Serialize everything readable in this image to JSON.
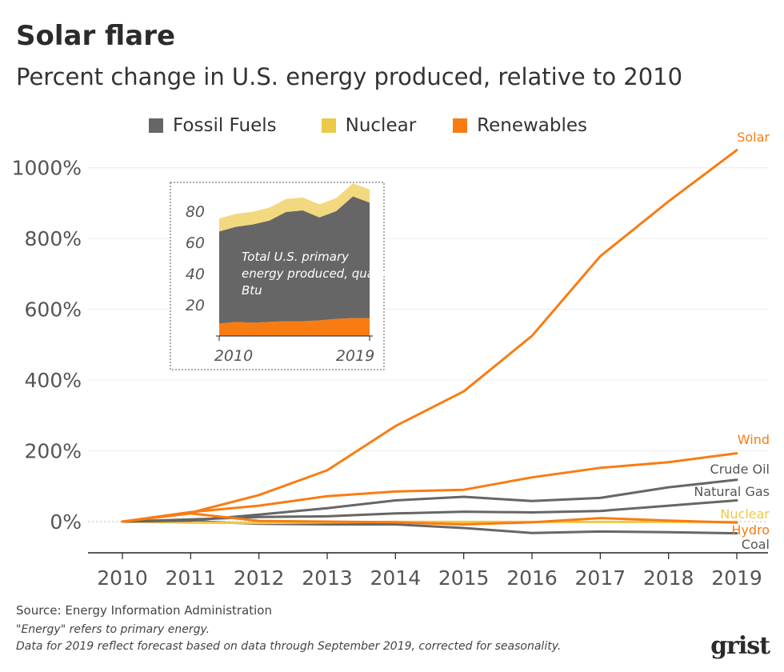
{
  "header": {
    "title": "Solar flare",
    "subtitle": "Percent change in U.S. energy produced, relative to 2010"
  },
  "legend": [
    {
      "label": "Fossil Fuels",
      "color": "#666666"
    },
    {
      "label": "Nuclear",
      "color": "#EDC948"
    },
    {
      "label": "Renewables",
      "color": "#F97C12"
    }
  ],
  "chart_data": [
    {
      "type": "line",
      "title": "Percent change in U.S. energy produced, relative to 2010",
      "x": [
        2010,
        2011,
        2012,
        2013,
        2014,
        2015,
        2016,
        2017,
        2018,
        2019
      ],
      "ylim": [
        -90,
        1080
      ],
      "yticks": [
        0,
        200,
        400,
        600,
        800,
        1000
      ],
      "ytick_labels": [
        "0%",
        "200%",
        "400%",
        "600%",
        "800%",
        "1000%"
      ],
      "grid": true,
      "series": [
        {
          "name": "Solar",
          "group": "Renewables",
          "color": "#F97C12",
          "values": [
            0,
            25,
            75,
            145,
            270,
            368,
            525,
            750,
            905,
            1050
          ]
        },
        {
          "name": "Wind",
          "group": "Renewables",
          "color": "#F97C12",
          "values": [
            0,
            27,
            45,
            72,
            85,
            90,
            125,
            152,
            168,
            193
          ]
        },
        {
          "name": "Crude Oil",
          "group": "Fossil Fuels",
          "color": "#666666",
          "values": [
            0,
            3,
            20,
            38,
            60,
            70,
            58,
            67,
            97,
            118
          ]
        },
        {
          "name": "Natural Gas",
          "group": "Fossil Fuels",
          "color": "#666666",
          "values": [
            0,
            6,
            13,
            15,
            23,
            28,
            26,
            30,
            45,
            60
          ]
        },
        {
          "name": "Nuclear",
          "group": "Nuclear",
          "color": "#EDC948",
          "values": [
            0,
            -3,
            -4,
            -2,
            -1,
            -1,
            -1,
            -1,
            -1,
            -1
          ]
        },
        {
          "name": "Hydro",
          "group": "Renewables",
          "color": "#F97C12",
          "values": [
            0,
            23,
            2,
            0,
            -2,
            -8,
            -2,
            10,
            3,
            -3
          ]
        },
        {
          "name": "Coal",
          "group": "Fossil Fuels",
          "color": "#666666",
          "values": [
            0,
            1,
            -6,
            -8,
            -8,
            -18,
            -32,
            -28,
            -30,
            -33
          ]
        }
      ]
    },
    {
      "type": "area",
      "stacked": true,
      "title": "Total U.S. primary energy produced, quadrillion Btu",
      "x": [
        2010,
        2011,
        2012,
        2013,
        2014,
        2015,
        2016,
        2017,
        2018,
        2019
      ],
      "xtick_labels": [
        "2010",
        "2019"
      ],
      "ylim": [
        0,
        95
      ],
      "yticks": [
        20,
        40,
        60,
        80
      ],
      "series": [
        {
          "name": "Renewables",
          "color": "#F97C12",
          "values": [
            8,
            9,
            8.5,
            9,
            9.5,
            9.5,
            10,
            11,
            11.5,
            11.5
          ]
        },
        {
          "name": "Fossil Fuels",
          "color": "#666666",
          "values": [
            59,
            61,
            63,
            65,
            70,
            71,
            66,
            69,
            78,
            74
          ]
        },
        {
          "name": "Nuclear",
          "color": "#EDC948",
          "values": [
            8.4,
            8.3,
            8.1,
            8.3,
            8.3,
            8.3,
            8.4,
            8.4,
            8.4,
            8.4
          ]
        }
      ]
    }
  ],
  "footer": {
    "source": "Source: Energy Information Administration",
    "note1": "\"Energy\" refers to primary energy.",
    "note2": "Data for 2019 reflect forecast based on data through September 2019, corrected for seasonality.",
    "logo": "grist"
  }
}
